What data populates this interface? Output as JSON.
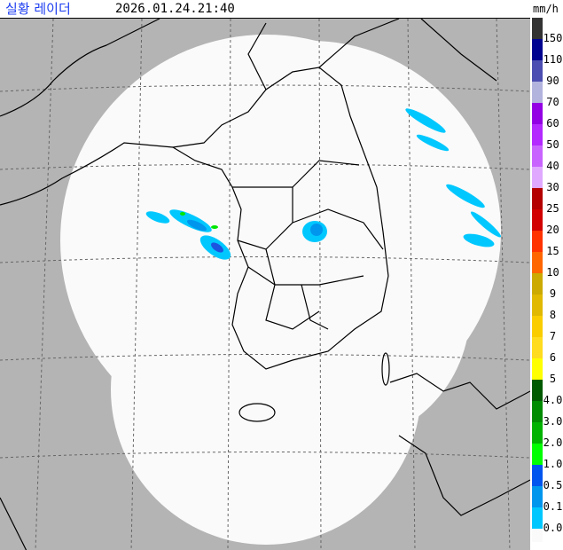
{
  "header": {
    "title": "실황 레이더",
    "timestamp": "2026.01.24.21:40",
    "unit": "mm/h"
  },
  "map": {
    "background_color": "#b4b4b4",
    "coverage_color": "#fafafa",
    "rain_colors": {
      "light": "#00c8ff",
      "mid": "#0096ee",
      "heavy": "#1c55e0",
      "peak": "#00e600"
    }
  },
  "legend": {
    "segments": [
      {
        "label": "150",
        "color": "#333333"
      },
      {
        "label": "110",
        "color": "#000390"
      },
      {
        "label": "90",
        "color": "#4c4eb1"
      },
      {
        "label": "70",
        "color": "#b3b4de"
      },
      {
        "label": "60",
        "color": "#9300e4"
      },
      {
        "label": "50",
        "color": "#b329ff"
      },
      {
        "label": "40",
        "color": "#c963ff"
      },
      {
        "label": "30",
        "color": "#e0a9ff"
      },
      {
        "label": "25",
        "color": "#b40000"
      },
      {
        "label": "20",
        "color": "#d20000"
      },
      {
        "label": "15",
        "color": "#ff3300"
      },
      {
        "label": "10",
        "color": "#ff6600"
      },
      {
        "label": "9",
        "color": "#ccaa00"
      },
      {
        "label": "8",
        "color": "#e0b900"
      },
      {
        "label": "7",
        "color": "#f9cd00"
      },
      {
        "label": "6",
        "color": "#ffdc1f"
      },
      {
        "label": "5",
        "color": "#ffff00"
      },
      {
        "label": "4.0",
        "color": "#005a00"
      },
      {
        "label": "3.0",
        "color": "#008c00"
      },
      {
        "label": "2.0",
        "color": "#00b300"
      },
      {
        "label": "1.0",
        "color": "#00ff00"
      },
      {
        "label": "0.5",
        "color": "#0055ee"
      },
      {
        "label": "0.1",
        "color": "#0096ee"
      },
      {
        "label": "0.0",
        "color": "#00c8ff"
      },
      {
        "label": "",
        "color": "#fafafa"
      }
    ]
  }
}
